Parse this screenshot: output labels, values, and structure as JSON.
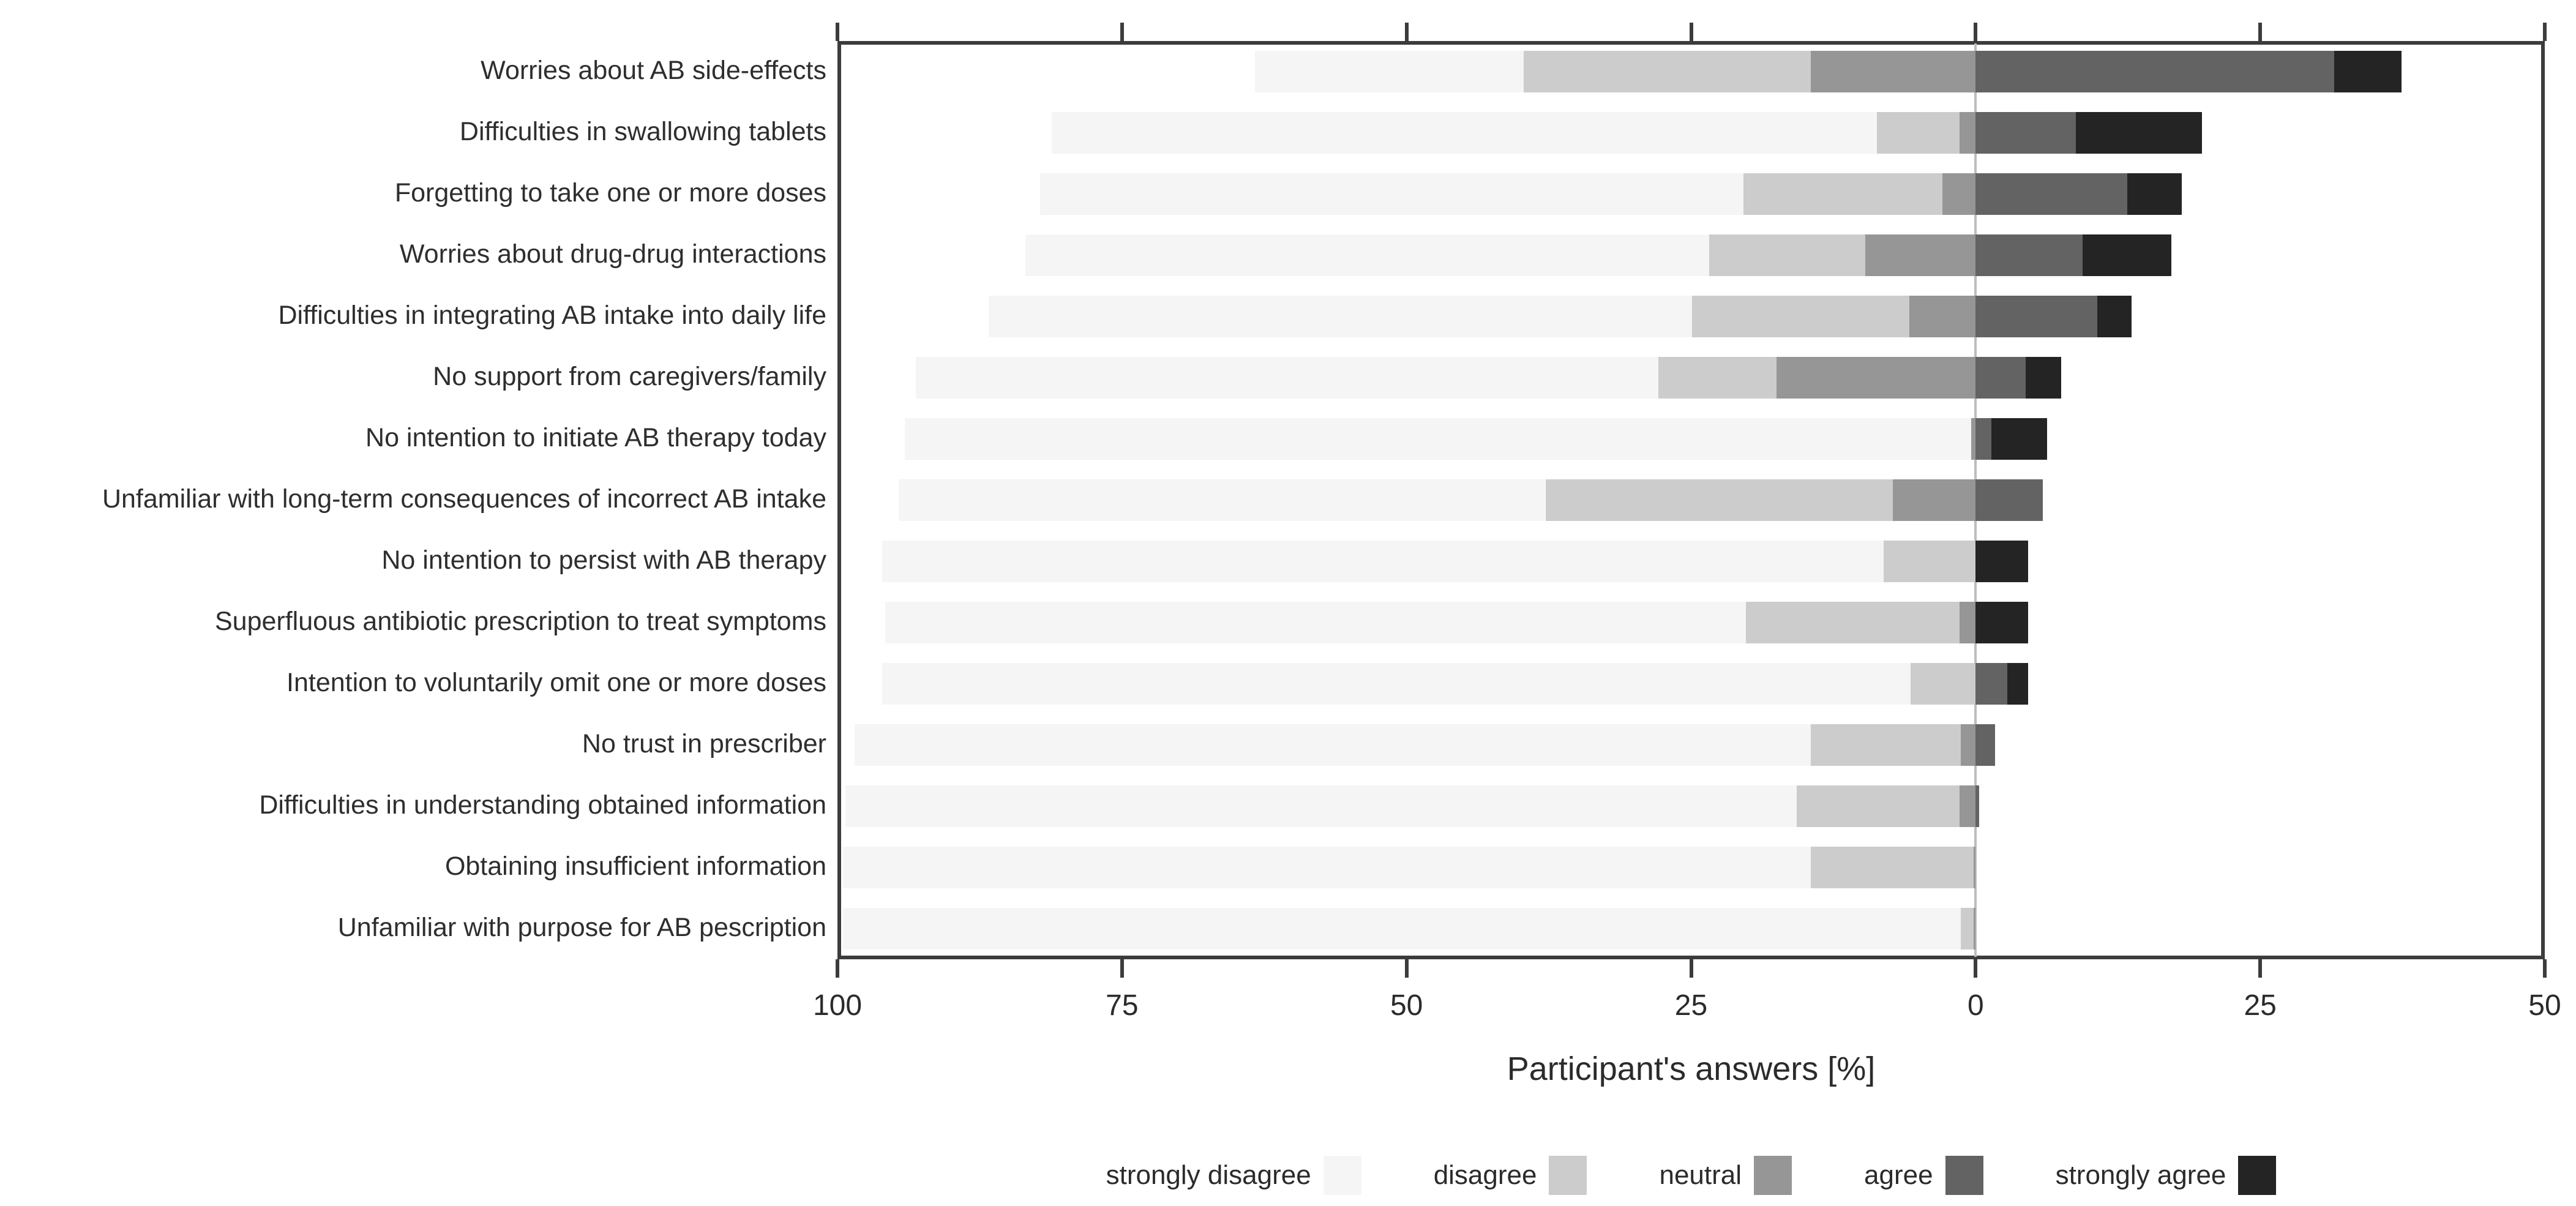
{
  "chart_data": {
    "type": "bar",
    "variant": "diverging-stacked-likert",
    "title": "",
    "xlabel": "Participant's answers [%]",
    "ylabel": "",
    "grid": "zero-line-only",
    "legend_position": "bottom",
    "x_axis": {
      "ticks": [
        100,
        75,
        50,
        25,
        0,
        -25,
        -50
      ],
      "tick_labels": [
        "100",
        "75",
        "50",
        "25",
        "0",
        "25",
        "50"
      ],
      "left_limit_pct": 100,
      "right_limit_pct": 50,
      "note": "values left of zero are disagreement percentages, right of zero agreement percentages"
    },
    "colors": {
      "strongly_disagree": "#f5f5f5",
      "disagree": "#cccccc",
      "neutral": "#969696",
      "agree": "#636363",
      "strongly_agree": "#242424"
    },
    "legend": [
      {
        "key": "strongly_disagree",
        "label": "strongly disagree"
      },
      {
        "key": "disagree",
        "label": "disagree"
      },
      {
        "key": "neutral",
        "label": "neutral"
      },
      {
        "key": "agree",
        "label": "agree"
      },
      {
        "key": "strongly_agree",
        "label": "strongly agree"
      }
    ],
    "series_order_left_of_zero": [
      "strongly_disagree",
      "disagree",
      "neutral"
    ],
    "series_order_right_of_zero": [
      "agree",
      "strongly_agree"
    ],
    "rows": [
      {
        "label": "Worries about AB side-effects",
        "strongly_disagree": 23.6,
        "disagree": 25.2,
        "neutral": 14.5,
        "agree": 31.5,
        "strongly_agree": 5.9
      },
      {
        "label": "Difficulties in swallowing tablets",
        "strongly_disagree": 72.5,
        "disagree": 7.3,
        "neutral": 1.4,
        "agree": 8.8,
        "strongly_agree": 11.1
      },
      {
        "label": "Forgetting to take one or more doses",
        "strongly_disagree": 61.8,
        "disagree": 17.5,
        "neutral": 2.9,
        "agree": 13.3,
        "strongly_agree": 4.8
      },
      {
        "label": "Worries about drug-drug interactions",
        "strongly_disagree": 60.1,
        "disagree": 13.7,
        "neutral": 9.7,
        "agree": 9.4,
        "strongly_agree": 7.8
      },
      {
        "label": "Difficulties in integrating AB intake into daily life",
        "strongly_disagree": 61.8,
        "disagree": 19.1,
        "neutral": 5.8,
        "agree": 10.7,
        "strongly_agree": 3.0
      },
      {
        "label": "No support from caregivers/family",
        "strongly_disagree": 65.2,
        "disagree": 10.4,
        "neutral": 17.5,
        "agree": 4.4,
        "strongly_agree": 3.1
      },
      {
        "label": "No intention to initiate AB therapy today",
        "strongly_disagree": 93.7,
        "disagree": 0.0,
        "neutral": 0.4,
        "agree": 1.4,
        "strongly_agree": 4.9
      },
      {
        "label": "Unfamiliar with long-term consequences of incorrect AB intake",
        "strongly_disagree": 56.8,
        "disagree": 30.5,
        "neutral": 7.3,
        "agree": 5.9,
        "strongly_agree": 0.0
      },
      {
        "label": "No intention to persist with AB therapy",
        "strongly_disagree": 88.0,
        "disagree": 8.1,
        "neutral": 0.0,
        "agree": 0.0,
        "strongly_agree": 4.6
      },
      {
        "label": "Superfluous antibiotic prescription to treat symptoms",
        "strongly_disagree": 75.6,
        "disagree": 18.8,
        "neutral": 1.4,
        "agree": 0.0,
        "strongly_agree": 4.6
      },
      {
        "label": "Intention to voluntarily omit one or more doses",
        "strongly_disagree": 90.4,
        "disagree": 5.7,
        "neutral": 0.0,
        "agree": 2.8,
        "strongly_agree": 1.8
      },
      {
        "label": "No trust in prescriber",
        "strongly_disagree": 84.0,
        "disagree": 13.2,
        "neutral": 1.3,
        "agree": 1.7,
        "strongly_agree": 0.0
      },
      {
        "label": "Difficulties in understanding obtained information",
        "strongly_disagree": 83.6,
        "disagree": 14.3,
        "neutral": 1.4,
        "agree": 0.3,
        "strongly_agree": 0.0
      },
      {
        "label": "Obtaining insufficient information",
        "strongly_disagree": 85.0,
        "disagree": 14.3,
        "neutral": 0.2,
        "agree": 0.0,
        "strongly_agree": 0.0
      },
      {
        "label": "Unfamiliar with purpose for AB pescription",
        "strongly_disagree": 98.2,
        "disagree": 1.1,
        "neutral": 0.2,
        "agree": 0.0,
        "strongly_agree": 0.0
      }
    ]
  }
}
